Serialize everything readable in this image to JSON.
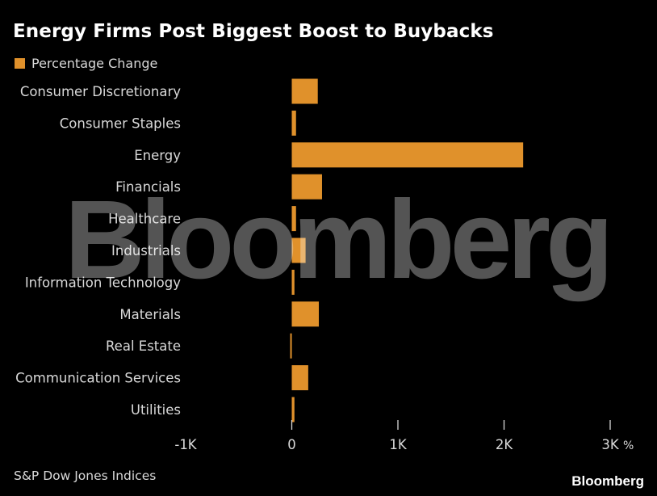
{
  "title": "Energy Firms Post Biggest Boost to Buybacks",
  "legend": {
    "label": "Percentage Change",
    "color": "#e0912b"
  },
  "source": "S&P Dow Jones Indices",
  "brand": "Bloomberg",
  "watermark": "Bloomberg",
  "chart_data": {
    "type": "bar",
    "orientation": "horizontal",
    "title": "Energy Firms Post Biggest Boost to Buybacks",
    "categories": [
      "Consumer Discretionary",
      "Consumer Staples",
      "Energy",
      "Financials",
      "Healthcare",
      "Industrials",
      "Information Technology",
      "Materials",
      "Real Estate",
      "Communication Services",
      "Utilities"
    ],
    "series": [
      {
        "name": "Percentage Change",
        "color": "#e0912b",
        "values": [
          245,
          40,
          2180,
          285,
          40,
          130,
          25,
          255,
          -15,
          155,
          25
        ]
      }
    ],
    "xlim": [
      -1000,
      3000
    ],
    "xticks": [
      -1000,
      0,
      1000,
      2000,
      3000
    ],
    "xtick_labels": [
      "-1K",
      "0",
      "1K",
      "2K",
      "3K"
    ],
    "unit": "%",
    "grid": false,
    "legend_position": "top-left"
  }
}
